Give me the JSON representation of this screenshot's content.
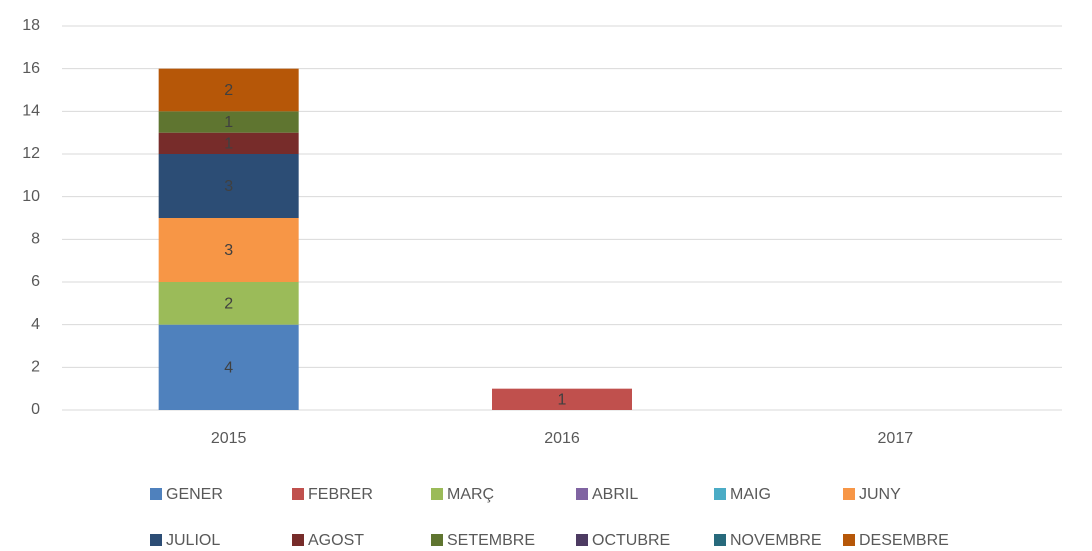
{
  "chart_data": {
    "type": "stacked_bar",
    "categories": [
      "2015",
      "2016",
      "2017"
    ],
    "series": [
      {
        "name": "GENER",
        "color": "#4f81bd",
        "values": [
          4,
          null,
          null
        ]
      },
      {
        "name": "FEBRER",
        "color": "#c0504d",
        "values": [
          null,
          1,
          null
        ]
      },
      {
        "name": "MARÇ",
        "color": "#9bbb59",
        "values": [
          2,
          null,
          null
        ]
      },
      {
        "name": "ABRIL",
        "color": "#8064a2",
        "values": [
          null,
          null,
          null
        ]
      },
      {
        "name": "MAIG",
        "color": "#4bacc6",
        "values": [
          null,
          null,
          null
        ]
      },
      {
        "name": "JUNY",
        "color": "#f79646",
        "values": [
          3,
          null,
          null
        ]
      },
      {
        "name": "JULIOL",
        "color": "#2c4d75",
        "values": [
          3,
          null,
          null
        ]
      },
      {
        "name": "AGOST",
        "color": "#772c2a",
        "values": [
          1,
          null,
          null
        ]
      },
      {
        "name": "SETEMBRE",
        "color": "#5f7530",
        "values": [
          1,
          null,
          null
        ]
      },
      {
        "name": "OCTUBRE",
        "color": "#4d3b62",
        "values": [
          null,
          null,
          null
        ]
      },
      {
        "name": "NOVEMBRE",
        "color": "#276a7c",
        "values": [
          null,
          null,
          null
        ]
      },
      {
        "name": "DESEMBRE",
        "color": "#b65708",
        "values": [
          2,
          null,
          null
        ]
      }
    ],
    "ylim": [
      0,
      18
    ],
    "yticks": [
      0,
      2,
      4,
      6,
      8,
      10,
      12,
      14,
      16,
      18
    ],
    "grid": true,
    "legend": "bottom"
  }
}
